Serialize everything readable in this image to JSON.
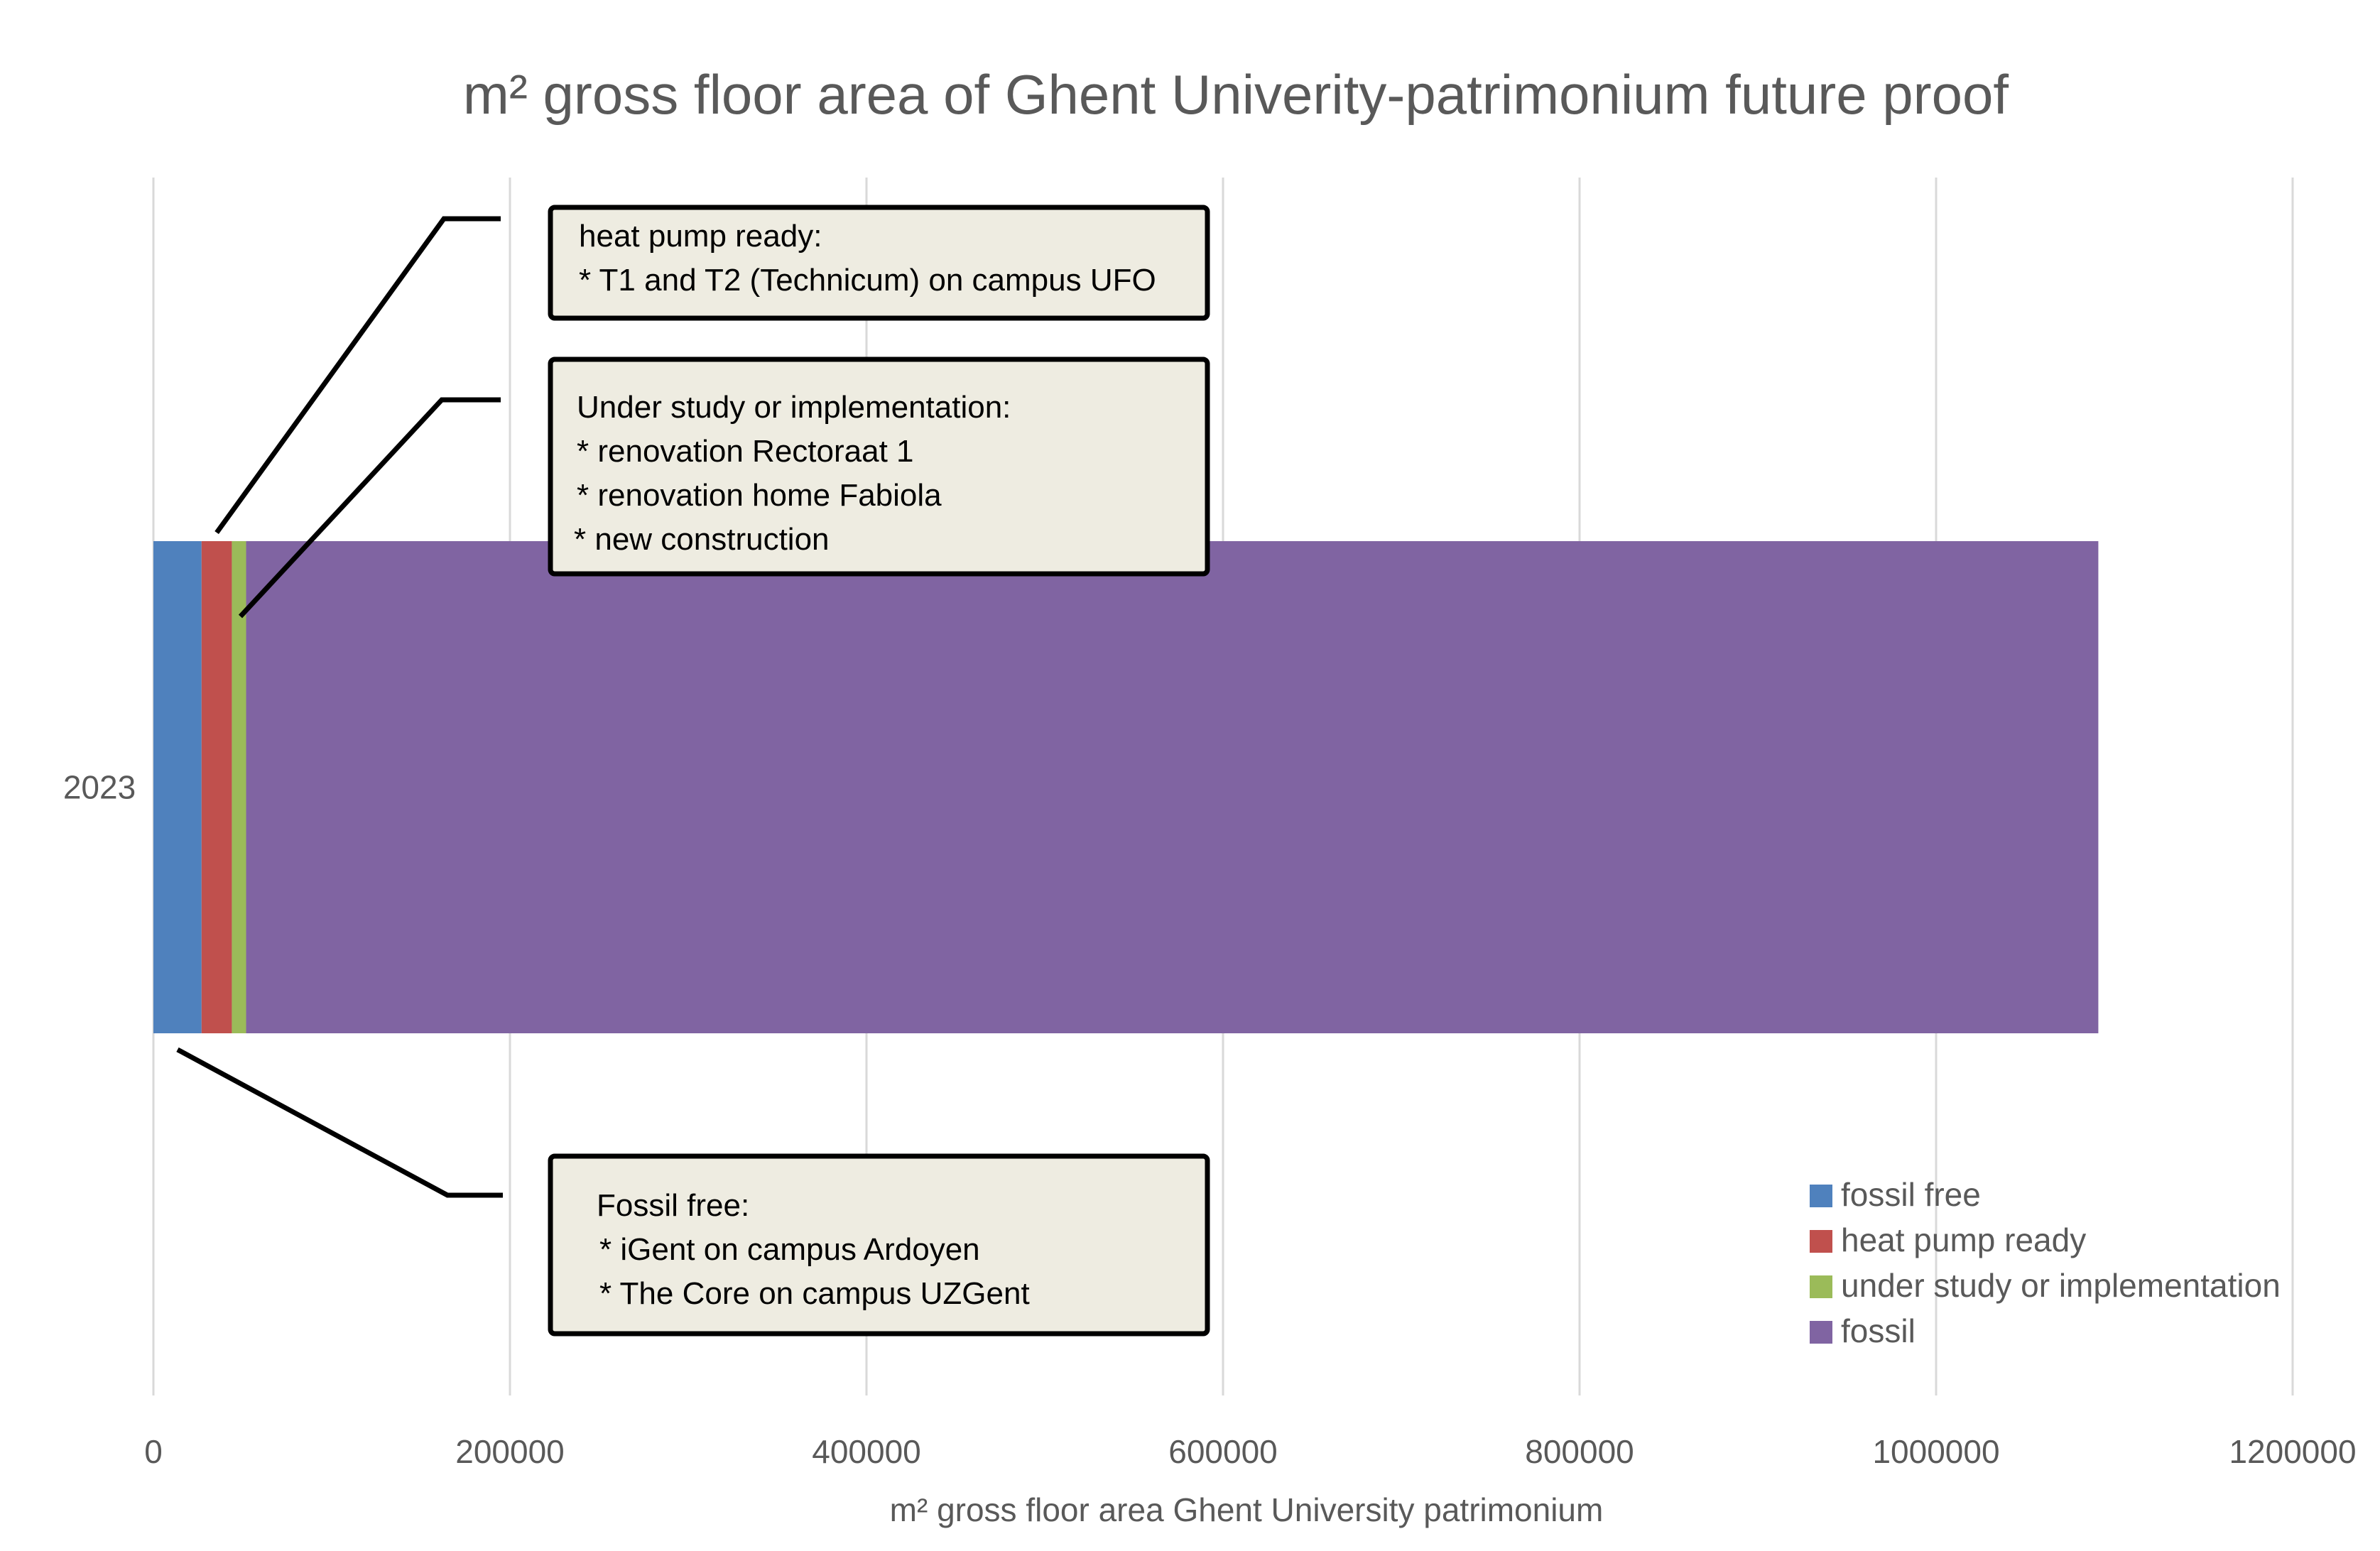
{
  "chart_data": {
    "type": "bar",
    "orientation": "horizontal",
    "stacked": true,
    "title": "m² gross floor area of Ghent Univerity-patrimonium future proof",
    "xlabel": "m² gross floor area Ghent University patrimonium",
    "ylabel": "",
    "categories": [
      "2023"
    ],
    "xlim": [
      0,
      1200000
    ],
    "x_ticks": [
      "0",
      "200000",
      "400000",
      "600000",
      "800000",
      "1000000",
      "1200000"
    ],
    "grid": "vertical",
    "legend_position": "bottom-right",
    "series": [
      {
        "name": "fossil free",
        "color": "#4F81BD",
        "values": [
          27000
        ]
      },
      {
        "name": "heat pump ready",
        "color": "#C0504D",
        "values": [
          17000
        ]
      },
      {
        "name": "under study or implementation",
        "color": "#9BBB59",
        "values": [
          8000
        ]
      },
      {
        "name": "fossil",
        "color": "#8064A2",
        "values": [
          1039000
        ]
      }
    ],
    "annotations": [
      {
        "series": "heat pump ready",
        "lines": [
          "heat pump ready:",
          "* T1 and T2  (Technicum) on campus UFO"
        ]
      },
      {
        "series": "under study or implementation",
        "lines": [
          "Under study or implementation:",
          "* renovation Rectoraat 1",
          "* renovation home Fabiola",
          "* new construction"
        ]
      },
      {
        "series": "fossil free",
        "lines": [
          "Fossil free:",
          "* iGent on campus Ardoyen",
          "* The Core on campus UZGent"
        ]
      }
    ]
  }
}
